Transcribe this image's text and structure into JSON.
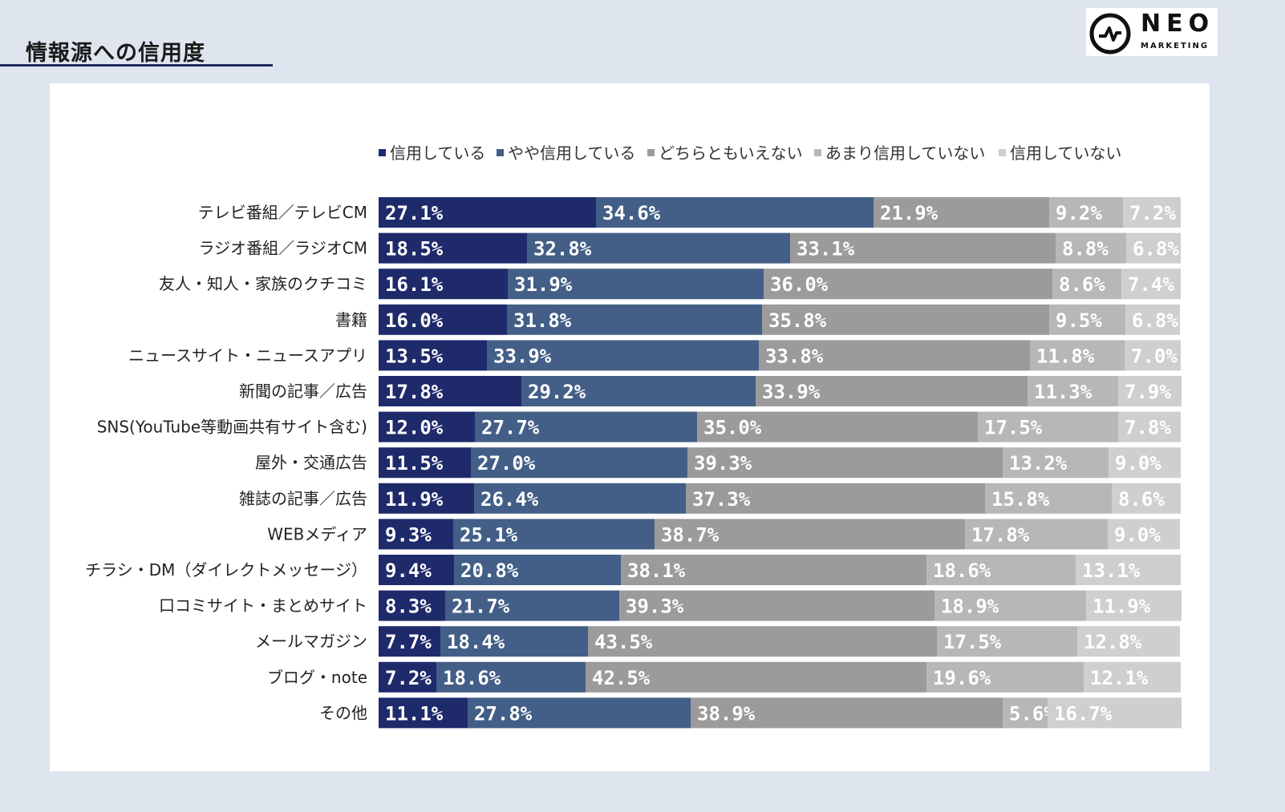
{
  "title": "情報源への信用度",
  "logo": {
    "name": "NEO",
    "sub": "MARKETING"
  },
  "chart_data": {
    "type": "bar",
    "orientation": "horizontal",
    "stacked": true,
    "legend_position": "top",
    "categories": [
      "テレビ番組／テレビCM",
      "ラジオ番組／ラジオCM",
      "友人・知人・家族のクチコミ",
      "書籍",
      "ニュースサイト・ニュースアプリ",
      "新聞の記事／広告",
      "SNS(YouTube等動画共有サイト含む)",
      "屋外・交通広告",
      "雑誌の記事／広告",
      "WEBメディア",
      "チラシ・DM（ダイレクトメッセージ）",
      "口コミサイト・まとめサイト",
      "メールマガジン",
      "ブログ・note",
      "その他"
    ],
    "series": [
      {
        "name": "信用している",
        "color": "#1f2a6b",
        "values": [
          27.1,
          18.5,
          16.1,
          16.0,
          13.5,
          17.8,
          12.0,
          11.5,
          11.9,
          9.3,
          9.4,
          8.3,
          7.7,
          7.2,
          11.1
        ],
        "labels": [
          "27.1%",
          "18.5%",
          "16.1%",
          "16.0%",
          "13.5%",
          "17.8%",
          "12.0%",
          "11.5%",
          "11.9%",
          "9.3%",
          "9.4%",
          "8.3%",
          "7.7%",
          "7.2%",
          "11.1%"
        ]
      },
      {
        "name": "やや信用している",
        "color": "#435f87",
        "values": [
          34.6,
          32.8,
          31.9,
          31.8,
          33.9,
          29.2,
          27.7,
          27.0,
          26.4,
          25.1,
          20.8,
          21.7,
          18.4,
          18.6,
          27.8
        ],
        "labels": [
          "34.6%",
          "32.8%",
          "31.9%",
          "31.8%",
          "33.9%",
          "29.2%",
          "27.7%",
          "27.0%",
          "26.4%",
          "25.1%",
          "20.8%",
          "21.7%",
          "18.4%",
          "18.6%",
          "27.8%"
        ]
      },
      {
        "name": "どちらともいえない",
        "color": "#9b9b9b",
        "values": [
          21.9,
          33.1,
          36.0,
          35.8,
          33.8,
          33.9,
          35.0,
          39.3,
          37.3,
          38.7,
          38.1,
          39.3,
          43.5,
          42.5,
          38.9
        ],
        "labels": [
          "21.9%",
          "33.1%",
          "36.0%",
          "35.8%",
          "33.8%",
          "33.9%",
          "35.0%",
          "39.3%",
          "37.3%",
          "38.7%",
          "38.1%",
          "39.3%",
          "43.5%",
          "42.5%",
          "38.9%"
        ]
      },
      {
        "name": "あまり信用していない",
        "color": "#b7b7b7",
        "values": [
          9.2,
          8.8,
          8.6,
          9.5,
          11.8,
          11.3,
          17.5,
          13.2,
          15.8,
          17.8,
          18.6,
          18.9,
          17.5,
          19.6,
          5.6
        ],
        "labels": [
          "9.2%",
          "8.8%",
          "8.6%",
          "9.5%",
          "11.8%",
          "11.3%",
          "17.5%",
          "13.2%",
          "15.8%",
          "17.8%",
          "18.6%",
          "18.9%",
          "17.5%",
          "19.6%",
          "5.6%"
        ]
      },
      {
        "name": "信用していない",
        "color": "#cfcfcf",
        "values": [
          7.2,
          6.8,
          7.4,
          6.8,
          7.0,
          7.9,
          7.8,
          9.0,
          8.6,
          9.0,
          13.1,
          11.9,
          12.8,
          12.1,
          16.7
        ],
        "labels": [
          "7.2%",
          "6.8%",
          "7.4%",
          "6.8%",
          "7.0%",
          "7.9%",
          "7.8%",
          "9.0%",
          "8.6%",
          "9.0%",
          "13.1%",
          "11.9%",
          "12.8%",
          "12.1%",
          "16.7%"
        ]
      }
    ],
    "xlim": [
      0,
      100
    ]
  }
}
